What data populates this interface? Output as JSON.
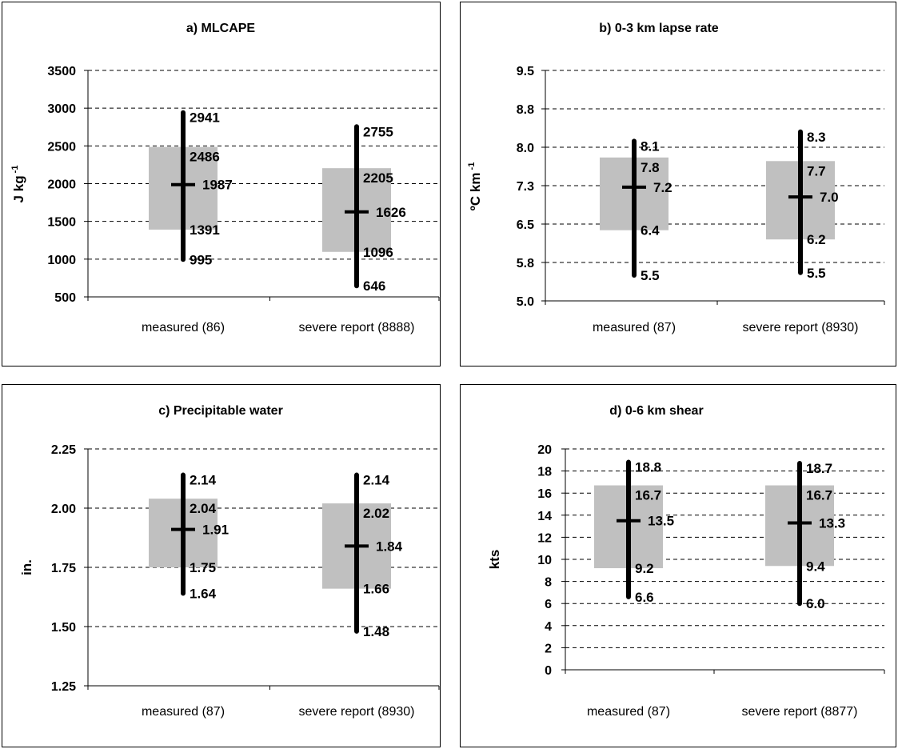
{
  "chart_data": [
    {
      "id": "a",
      "type": "box",
      "title": "a) MLCAPE",
      "ylabel_main": "J kg",
      "ylabel_sup": "-1",
      "ylim": [
        500,
        3500
      ],
      "yticks": [
        "500",
        "1000",
        "1500",
        "2000",
        "2500",
        "3000",
        "3500"
      ],
      "ytick_values": [
        500,
        1000,
        1500,
        2000,
        2500,
        3000,
        3500
      ],
      "grid": "dashed horizontal",
      "categories": [
        "measured (86)",
        "severe report (8888)"
      ],
      "series": [
        {
          "category": "measured (86)",
          "min": 995,
          "q1": 1391,
          "median": 1987,
          "q3": 2486,
          "max": 2941,
          "labels": {
            "max": "2941",
            "q3": "2486",
            "median": "1987",
            "q1": "1391",
            "min": "995"
          }
        },
        {
          "category": "severe report (8888)",
          "min": 646,
          "q1": 1096,
          "median": 1626,
          "q3": 2205,
          "max": 2755,
          "labels": {
            "max": "2755",
            "q3": "2205",
            "median": "1626",
            "q1": "1096",
            "min": "646"
          }
        }
      ]
    },
    {
      "id": "b",
      "type": "box",
      "title": "b) 0-3 km lapse rate",
      "ylabel_main": "ºC km",
      "ylabel_sup": "-1",
      "ylim": [
        5.0,
        9.5
      ],
      "yticks": [
        "5.0",
        "5.8",
        "6.5",
        "7.3",
        "8.0",
        "8.8",
        "9.5"
      ],
      "ytick_values": [
        5.0,
        5.75,
        6.5,
        7.25,
        8.0,
        8.75,
        9.5
      ],
      "grid": "dashed horizontal",
      "categories": [
        "measured (87)",
        "severe report (8930)"
      ],
      "series": [
        {
          "category": "measured (87)",
          "min": 5.5,
          "q1": 6.38,
          "median": 7.22,
          "q3": 7.8,
          "max": 8.12,
          "labels": {
            "max": "8.1",
            "q3": "7.8",
            "median": "7.2",
            "q1": "6.4",
            "min": "5.5"
          }
        },
        {
          "category": "severe report (8930)",
          "min": 5.55,
          "q1": 6.2,
          "median": 7.03,
          "q3": 7.73,
          "max": 8.3,
          "labels": {
            "max": "8.3",
            "q3": "7.7",
            "median": "7.0",
            "q1": "6.2",
            "min": "5.5"
          }
        }
      ]
    },
    {
      "id": "c",
      "type": "box",
      "title": "c) Precipitable water",
      "ylabel_main": "in.",
      "ylabel_sup": "",
      "ylim": [
        1.25,
        2.25
      ],
      "yticks": [
        "1.25",
        "1.50",
        "1.75",
        "2.00",
        "2.25"
      ],
      "ytick_values": [
        1.25,
        1.5,
        1.75,
        2.0,
        2.25
      ],
      "grid": "dashed horizontal",
      "categories": [
        "measured (87)",
        "severe report (8930)"
      ],
      "series": [
        {
          "category": "measured (87)",
          "min": 1.64,
          "q1": 1.75,
          "median": 1.91,
          "q3": 2.04,
          "max": 2.14,
          "labels": {
            "max": "2.14",
            "q3": "2.04",
            "median": "1.91",
            "q1": "1.75",
            "min": "1.64"
          }
        },
        {
          "category": "severe report (8930)",
          "min": 1.48,
          "q1": 1.66,
          "median": 1.84,
          "q3": 2.02,
          "max": 2.14,
          "labels": {
            "max": "2.14",
            "q3": "2.02",
            "median": "1.84",
            "q1": "1.66",
            "min": "1.48"
          }
        }
      ]
    },
    {
      "id": "d",
      "type": "box",
      "title": "d) 0-6 km shear",
      "ylabel_main": "kts",
      "ylabel_sup": "",
      "ylim": [
        0,
        20
      ],
      "yticks": [
        "0",
        "2",
        "4",
        "6",
        "8",
        "10",
        "12",
        "14",
        "16",
        "18",
        "20"
      ],
      "ytick_values": [
        0,
        2,
        4,
        6,
        8,
        10,
        12,
        14,
        16,
        18,
        20
      ],
      "grid": "dashed horizontal",
      "categories": [
        "measured (87)",
        "severe report (8877)"
      ],
      "series": [
        {
          "category": "measured (87)",
          "min": 6.6,
          "q1": 9.2,
          "median": 13.5,
          "q3": 16.7,
          "max": 18.8,
          "labels": {
            "max": "18.8",
            "q3": "16.7",
            "median": "13.5",
            "q1": "9.2",
            "min": "6.6"
          }
        },
        {
          "category": "severe report (8877)",
          "min": 6.0,
          "q1": 9.4,
          "median": 13.3,
          "q3": 16.7,
          "max": 18.7,
          "labels": {
            "max": "18.7",
            "q3": "16.7",
            "median": "13.3",
            "q1": "9.4",
            "min": "6.0"
          }
        }
      ]
    }
  ],
  "colors": {
    "box_fill": "#c0c0c0",
    "whisker": "#000000",
    "grid": "#000000"
  }
}
